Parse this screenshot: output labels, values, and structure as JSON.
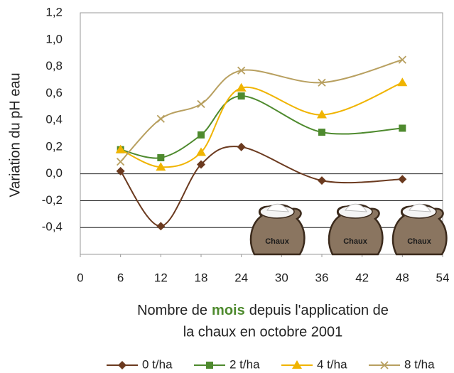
{
  "chart_data": {
    "type": "line",
    "ylabel": "Variation du pH eau",
    "xlabel": [
      "Nombre de",
      "mois",
      "depuis l'application de",
      "la chaux en octobre 2001"
    ],
    "annotation": "Chaux",
    "xlim": [
      0,
      54
    ],
    "xticks": [
      0,
      6,
      12,
      18,
      24,
      30,
      36,
      42,
      48,
      54
    ],
    "ylim": [
      -0.6,
      1.2
    ],
    "yticks": [
      {
        "value": -0.4,
        "label": "-0,4"
      },
      {
        "value": -0.2,
        "label": "-0,2"
      },
      {
        "value": 0,
        "label": "0,0"
      },
      {
        "value": 0.2,
        "label": "0,2"
      },
      {
        "value": 0.4,
        "label": "0,4"
      },
      {
        "value": 0.6,
        "label": "0,6"
      },
      {
        "value": 0.8,
        "label": "0,8"
      },
      {
        "value": 1.0,
        "label": "1,0"
      },
      {
        "value": 1.2,
        "label": "1,2"
      }
    ],
    "x": [
      6,
      12,
      18,
      24,
      36,
      48
    ],
    "series": [
      {
        "name": "0 t/ha",
        "color": "#6b3a1f",
        "marker": "diamond",
        "values": [
          0.02,
          -0.39,
          0.07,
          0.2,
          -0.05,
          -0.04
        ]
      },
      {
        "name": "2 t/ha",
        "color": "#4e8a2e",
        "marker": "square",
        "values": [
          0.18,
          0.12,
          0.29,
          0.58,
          0.31,
          0.34
        ]
      },
      {
        "name": "4 t/ha",
        "color": "#f0b400",
        "marker": "triangle",
        "values": [
          0.18,
          0.05,
          0.16,
          0.64,
          0.44,
          0.68
        ]
      },
      {
        "name": "8 t/ha",
        "color": "#b8a060",
        "marker": "cross",
        "values": [
          0.09,
          0.41,
          0.52,
          0.77,
          0.68,
          0.85
        ]
      }
    ]
  }
}
